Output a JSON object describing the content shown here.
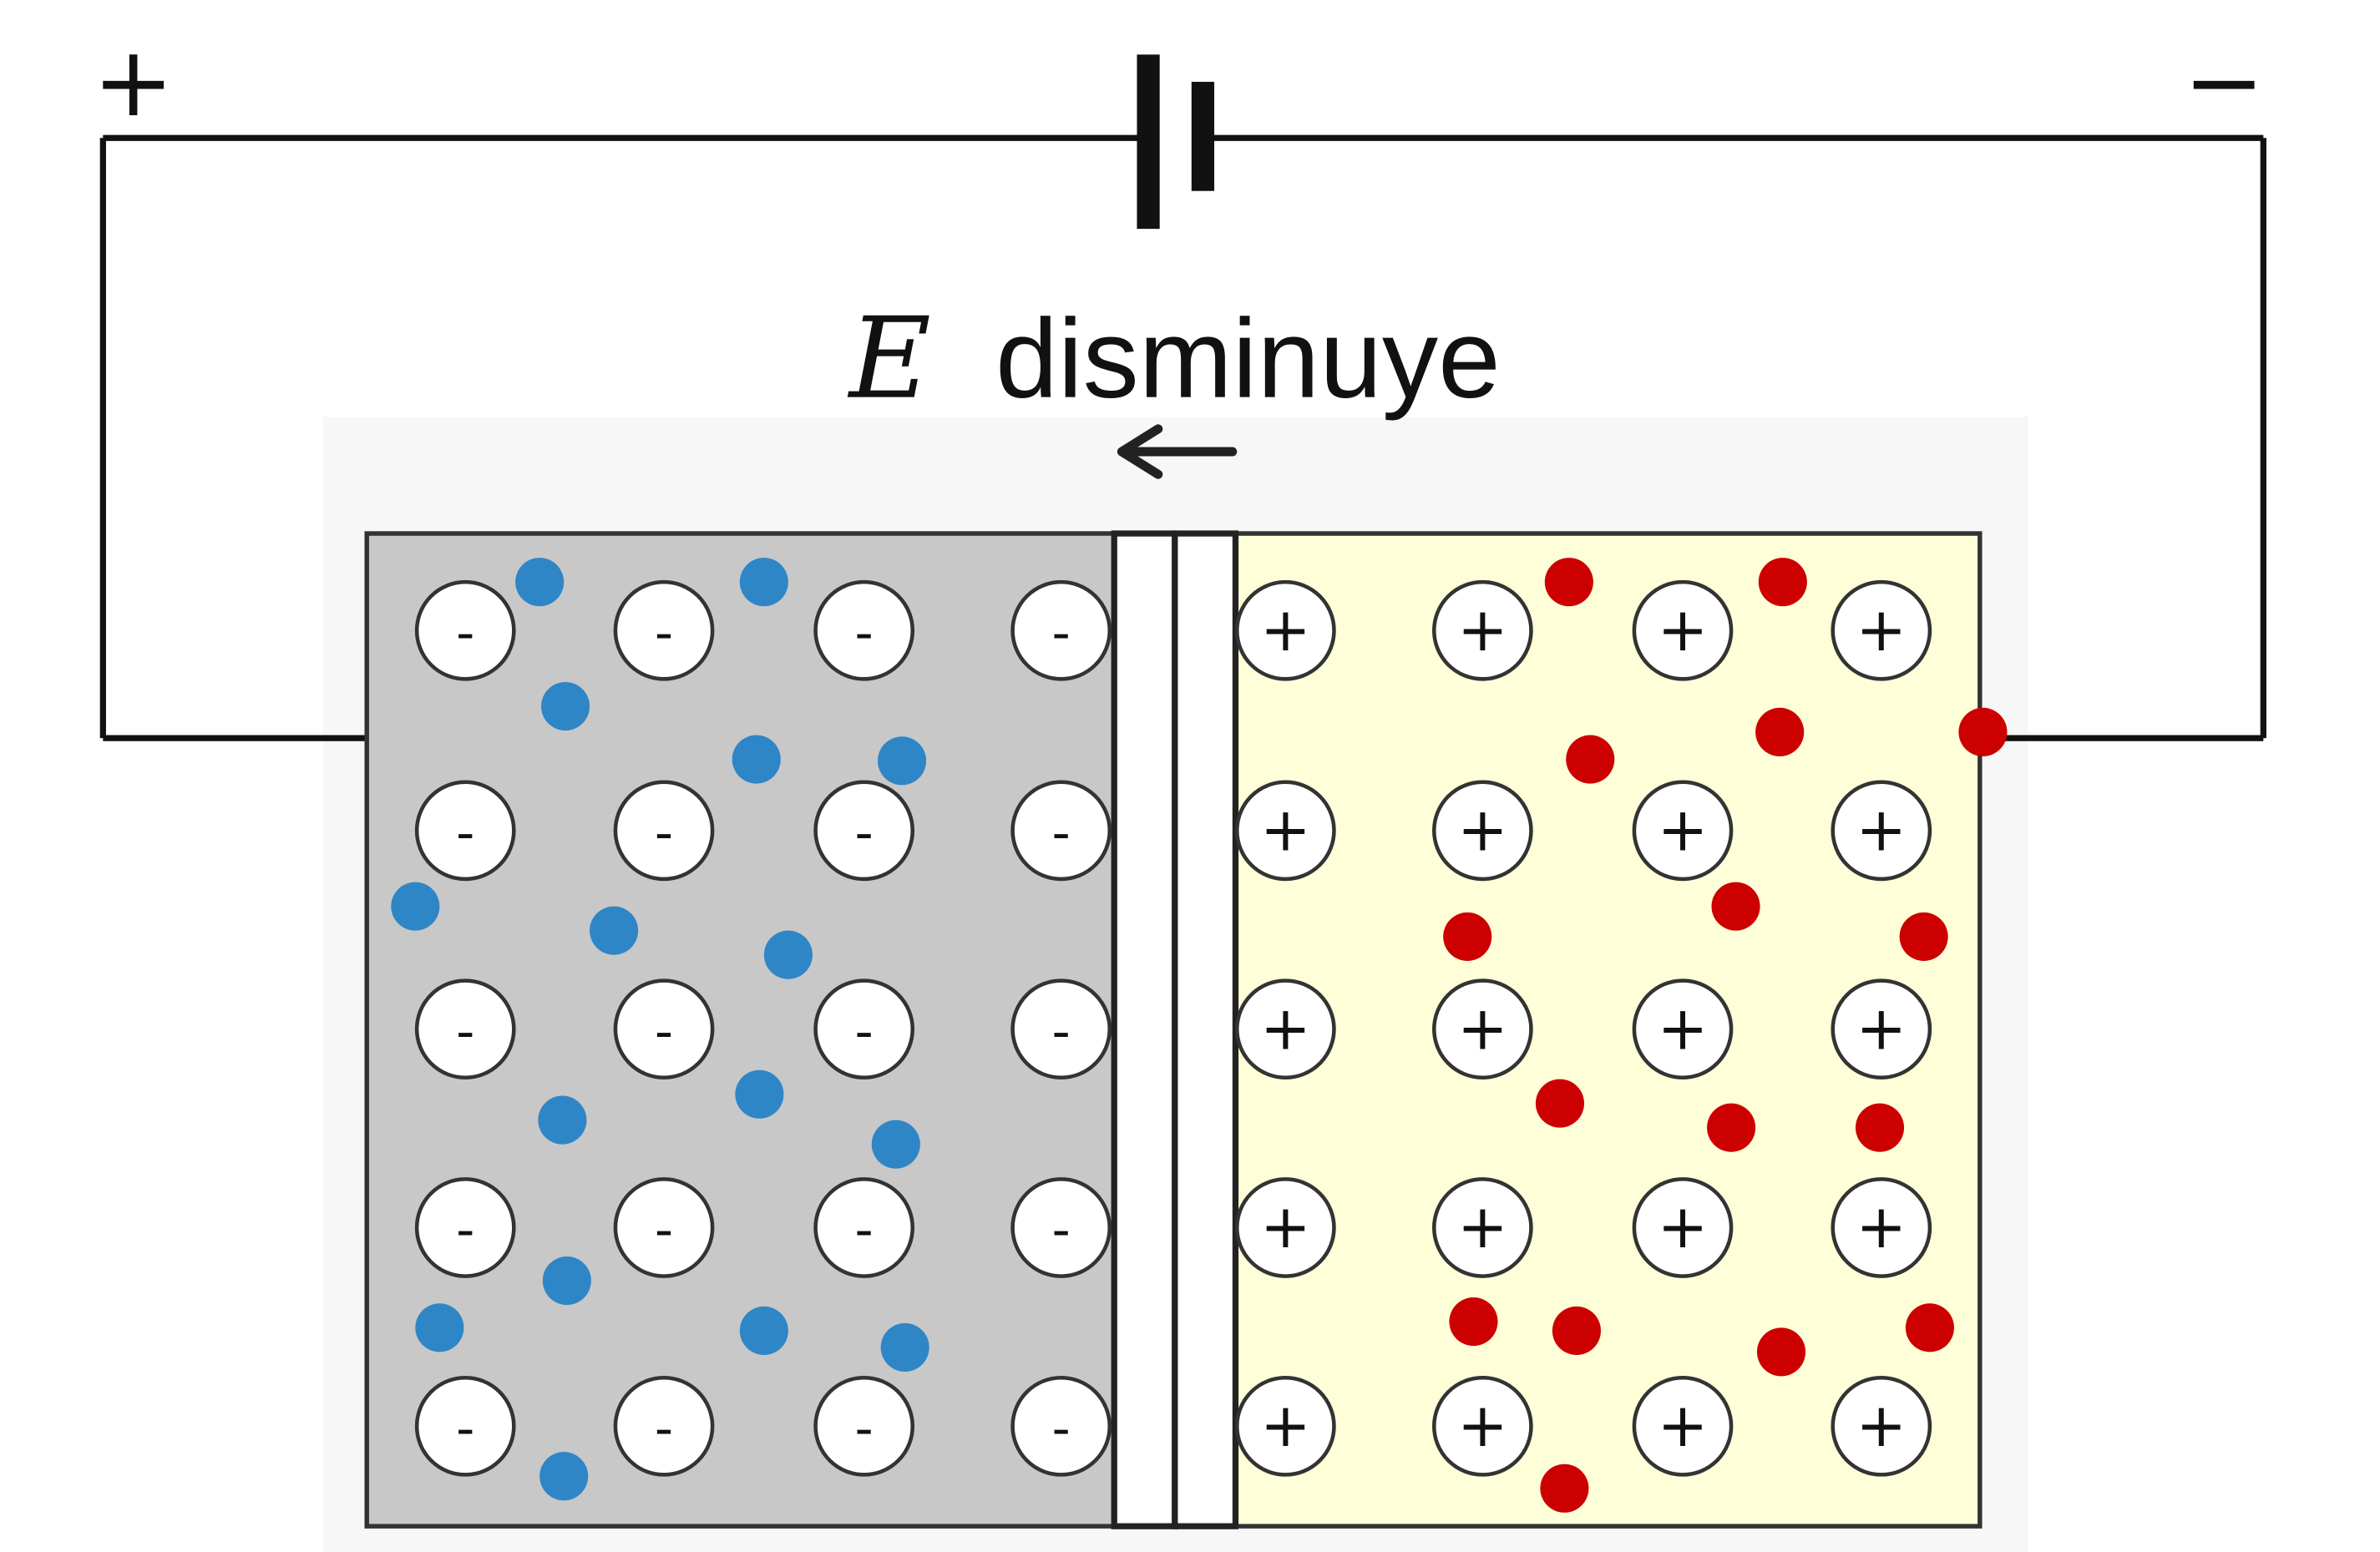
{
  "battery": {
    "positive_symbol": "+",
    "negative_symbol": "−"
  },
  "field_label": {
    "variable": "E",
    "text": "disminuye"
  },
  "p_region": {
    "fixed_ion_symbol": "-",
    "fixed_ion_count": 20,
    "carrier_color": "#2f86c6",
    "fill": "#c8c8c8"
  },
  "n_region": {
    "fixed_ion_symbol": "+",
    "fixed_ion_count": 20,
    "carrier_color": "#cc0000",
    "fill": "#fefed8"
  },
  "colors": {
    "wire": "#111111",
    "junction_fill": "#ffffff",
    "backdrop": "#f7f7f7"
  }
}
